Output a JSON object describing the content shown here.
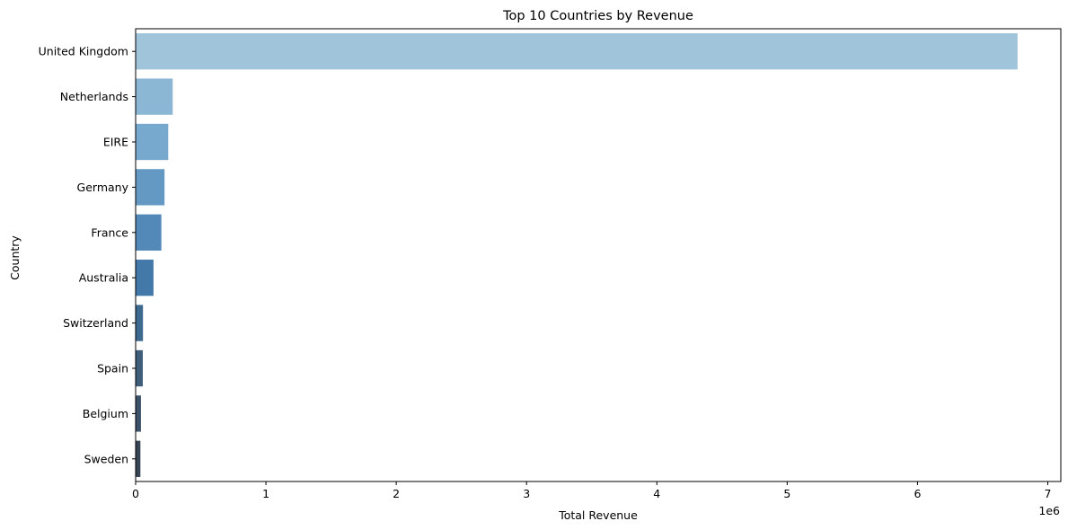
{
  "chart_data": {
    "type": "bar",
    "orientation": "horizontal",
    "title": "Top 10 Countries by Revenue",
    "xlabel": "Total Revenue",
    "ylabel": "Country",
    "x_offset_label": "1e6",
    "categories": [
      "United Kingdom",
      "Netherlands",
      "EIRE",
      "Germany",
      "France",
      "Australia",
      "Switzerland",
      "Spain",
      "Belgium",
      "Sweden"
    ],
    "values": [
      6767873,
      284662,
      250286,
      221698,
      197404,
      137077,
      56385,
      54775,
      40910,
      36595
    ],
    "xlim": [
      0,
      7100000
    ],
    "xticks": [
      0,
      1000000,
      2000000,
      3000000,
      4000000,
      5000000,
      6000000,
      7000000
    ],
    "xtick_labels": [
      "0",
      "1",
      "2",
      "3",
      "4",
      "5",
      "6",
      "7"
    ],
    "colors": [
      "#a0c4da",
      "#8bb6d4",
      "#77a8cd",
      "#6499c3",
      "#5289b8",
      "#4279a9",
      "#3e6a8f",
      "#3e5e7a",
      "#3c5268",
      "#384555"
    ],
    "grid": false,
    "legend": false
  }
}
